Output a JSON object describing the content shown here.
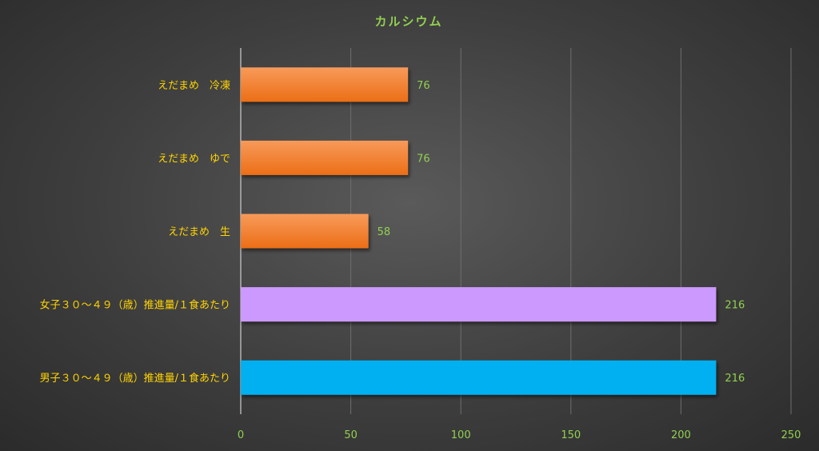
{
  "chart_data": {
    "type": "bar",
    "orientation": "horizontal",
    "title": "カルシウム",
    "categories": [
      "えだまめ　冷凍",
      "えだまめ　ゆで",
      "えだまめ　生",
      "女子３０～４９（歳）推進量/１食あたり",
      "男子３０～４９（歳）推進量/１食あたり"
    ],
    "values": [
      76,
      76,
      58,
      216,
      216
    ],
    "bar_colors": [
      "#f07c2a",
      "#f07c2a",
      "#f07c2a",
      "#cc99ff",
      "#00b0f0"
    ],
    "data_labels": [
      "76",
      "76",
      "58",
      "216",
      "216"
    ],
    "xlim": [
      0,
      250
    ],
    "xticks": [
      0,
      50,
      100,
      150,
      200,
      250
    ],
    "grid": true,
    "legend": "none"
  },
  "colors": {
    "title": "#92d050",
    "category_label": "#ffd400",
    "tick_label": "#92d050",
    "data_label": "#92d050",
    "gridline": "#6e6e6e",
    "axis": "#cfcfcf"
  }
}
